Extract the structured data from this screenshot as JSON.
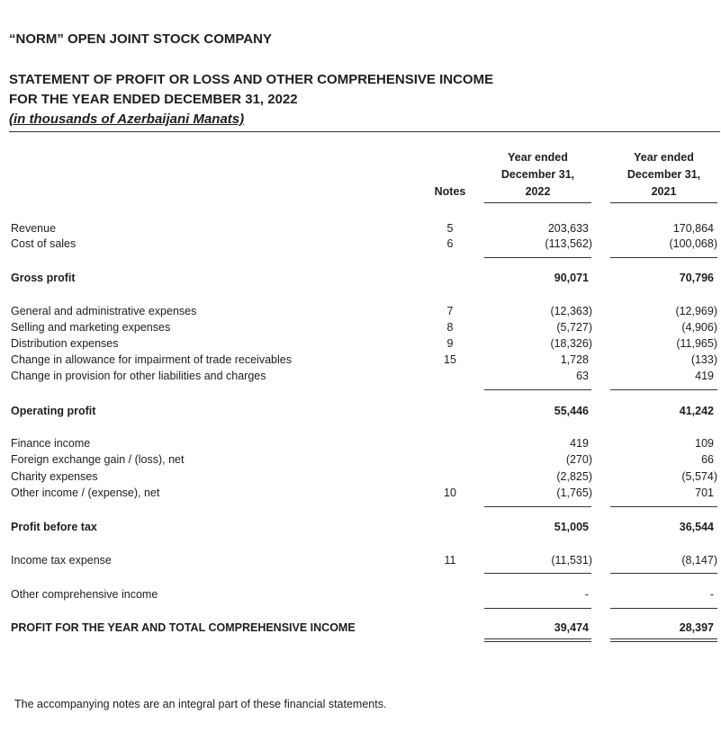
{
  "company": "“NORM” OPEN JOINT STOCK COMPANY",
  "statement_title": "STATEMENT OF PROFIT OR LOSS AND OTHER COMPREHENSIVE INCOME",
  "period": "FOR THE YEAR ENDED DECEMBER 31, 2022",
  "units": "(in thousands of Azerbaijani Manats)",
  "columns": {
    "notes": "Notes",
    "col2022": [
      "Year ended",
      "December 31,",
      "2022"
    ],
    "col2021": [
      "Year ended",
      "December 31,",
      "2021"
    ]
  },
  "rows": [
    {
      "label": "Revenue",
      "note": "5",
      "v2022": "203,633",
      "v2021": "170,864"
    },
    {
      "label": "Cost of sales",
      "note": "6",
      "v2022": "(113,562)",
      "v2021": "(100,068)"
    },
    {
      "label": "Gross profit",
      "note": "",
      "v2022": "90,071",
      "v2021": "70,796"
    },
    {
      "label": "General and administrative expenses",
      "note": "7",
      "v2022": "(12,363)",
      "v2021": "(12,969)"
    },
    {
      "label": "Selling and marketing expenses",
      "note": "8",
      "v2022": "(5,727)",
      "v2021": "(4,906)"
    },
    {
      "label": "Distribution expenses",
      "note": "9",
      "v2022": "(18,326)",
      "v2021": "(11,965)"
    },
    {
      "label": "Change in allowance for impairment of trade receivables",
      "note": "15",
      "v2022": "1,728",
      "v2021": "(133)"
    },
    {
      "label": "Change in provision for other liabilities and charges",
      "note": "",
      "v2022": "63",
      "v2021": "419"
    },
    {
      "label": "Operating profit",
      "note": "",
      "v2022": "55,446",
      "v2021": "41,242"
    },
    {
      "label": "Finance income",
      "note": "",
      "v2022": "419",
      "v2021": "109"
    },
    {
      "label": "Foreign exchange gain / (loss), net",
      "note": "",
      "v2022": "(270)",
      "v2021": "66"
    },
    {
      "label": "Charity expenses",
      "note": "",
      "v2022": "(2,825)",
      "v2021": "(5,574)"
    },
    {
      "label": "Other income / (expense), net",
      "note": "10",
      "v2022": "(1,765)",
      "v2021": "701"
    },
    {
      "label": "Profit before tax",
      "note": "",
      "v2022": "51,005",
      "v2021": "36,544"
    },
    {
      "label": "Income tax expense",
      "note": "11",
      "v2022": "(11,531)",
      "v2021": "(8,147)"
    },
    {
      "label": "Other comprehensive income",
      "note": "",
      "v2022": "-",
      "v2021": "-"
    },
    {
      "label": "PROFIT FOR THE YEAR AND TOTAL COMPREHENSIVE INCOME",
      "note": "",
      "v2022": "39,474",
      "v2021": "28,397"
    }
  ],
  "footer": "The accompanying notes are an integral part of these financial statements."
}
